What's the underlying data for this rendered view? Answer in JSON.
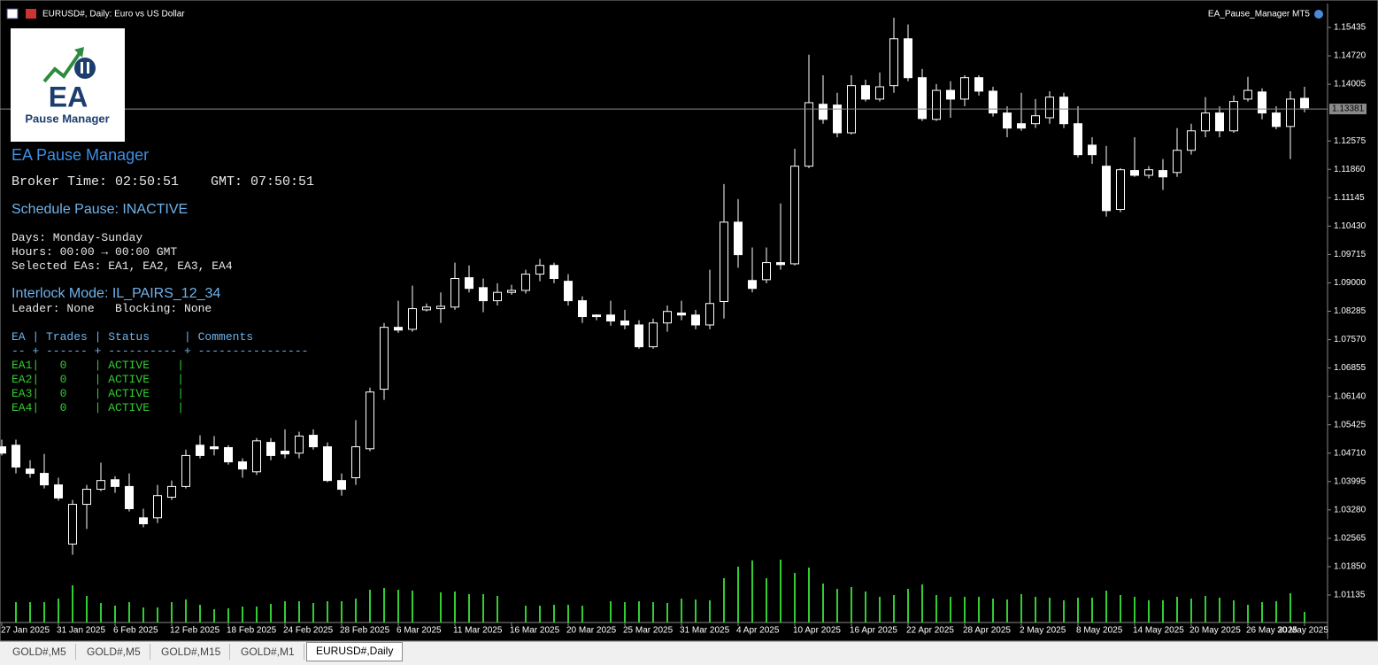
{
  "window": {
    "title": "EURUSD#, Daily: Euro vs US Dollar",
    "ea_label": "EA_Pause_Manager MT5"
  },
  "logo": {
    "title": "EA",
    "subtitle": "Pause Manager"
  },
  "panel": {
    "title": "EA Pause Manager",
    "time_line": "Broker Time: 02:50:51    GMT: 07:50:51",
    "schedule": "Schedule Pause: INACTIVE",
    "days": "Days: Monday-Sunday",
    "hours": "Hours: 00:00 → 00:00 GMT",
    "selected": "Selected EAs: EA1, EA2, EA3, EA4",
    "interlock": "Interlock Mode: IL_PAIRS_12_34",
    "leader": "Leader: None   Blocking: None",
    "table_header": "EA | Trades | Status     | Comments",
    "table_rule": "-- + ------ + ---------- + ----------------",
    "table_rows": [
      "EA1|   0    | ACTIVE    |",
      "EA2|   0    | ACTIVE    |",
      "EA3|   0    | ACTIVE    |",
      "EA4|   0    | ACTIVE    |"
    ]
  },
  "tabs": [
    "GOLD#,M5",
    "GOLD#,M5",
    "GOLD#,M15",
    "GOLD#,M1",
    "EURUSD#,Daily"
  ],
  "active_tab": 4,
  "chart_data": {
    "type": "candlestick",
    "bull_fill": "#000000",
    "bear_fill": "#ffffff",
    "candle_stroke": "#ffffff",
    "volume_color": "#32cd32",
    "categories": [
      "27 Jan 2025",
      null,
      null,
      null,
      "31 Jan 2025",
      null,
      null,
      null,
      "6 Feb 2025",
      null,
      null,
      null,
      "12 Feb 2025",
      null,
      null,
      null,
      "18 Feb 2025",
      null,
      null,
      null,
      "24 Feb 2025",
      null,
      null,
      null,
      "28 Feb 2025",
      null,
      null,
      null,
      "6 Mar 2025",
      null,
      null,
      null,
      "11 Mar 2025",
      null,
      null,
      null,
      "16 Mar 2025",
      null,
      null,
      null,
      "20 Mar 2025",
      null,
      null,
      null,
      "25 Mar 2025",
      null,
      null,
      null,
      "31 Mar 2025",
      null,
      null,
      null,
      "4 Apr 2025",
      null,
      null,
      null,
      "10 Apr 2025",
      null,
      null,
      null,
      "16 Apr 2025",
      null,
      null,
      null,
      "22 Apr 2025",
      null,
      null,
      null,
      "28 Apr 2025",
      null,
      null,
      null,
      "2 May 2025",
      null,
      null,
      null,
      "8 May 2025",
      null,
      null,
      null,
      "14 May 2025",
      null,
      null,
      null,
      "20 May 2025",
      null,
      null,
      null,
      "26 May 2025",
      null,
      null,
      null,
      "30 May 2025"
    ],
    "open": [
      1.0487,
      1.0491,
      1.0431,
      1.042,
      1.0391,
      1.0242,
      1.0342,
      1.038,
      1.0404,
      1.0387,
      1.0308,
      1.0308,
      1.036,
      1.0387,
      1.0491,
      1.0487,
      1.0485,
      1.0449,
      1.0424,
      1.0498,
      1.0476,
      1.0471,
      1.0516,
      1.0487,
      1.0402,
      1.0409,
      1.0482,
      1.0632,
      1.0788,
      1.0783,
      1.0832,
      1.0835,
      1.0839,
      1.0913,
      1.0888,
      1.0855,
      1.0876,
      1.0881,
      1.0922,
      1.0944,
      1.0904,
      1.0855,
      1.0819,
      1.0819,
      1.0804,
      1.0794,
      1.0739,
      1.0799,
      1.0824,
      1.0819,
      1.0794,
      1.0853,
      1.1053,
      1.0906,
      1.0908,
      1.0951,
      1.0948,
      1.1194,
      1.135,
      1.1348,
      1.1278,
      1.1397,
      1.1363,
      1.1397,
      1.1515,
      1.1417,
      1.1312,
      1.1385,
      1.1363,
      1.1417,
      1.1383,
      1.1328,
      1.1301,
      1.1301,
      1.1316,
      1.1368,
      1.1301,
      1.1247,
      1.1194,
      1.1085,
      1.1183,
      1.1171,
      1.1183,
      1.1178,
      1.1234,
      1.1283,
      1.1328,
      1.1283,
      1.1363,
      1.1381,
      1.1328,
      1.1294,
      1.1365
    ],
    "high": [
      1.0505,
      1.0505,
      1.0453,
      1.0469,
      1.0409,
      1.0353,
      1.0391,
      1.0447,
      1.0413,
      1.042,
      1.0331,
      1.0391,
      1.0402,
      1.048,
      1.0516,
      1.0514,
      1.0491,
      1.0458,
      1.0509,
      1.0509,
      1.0531,
      1.0525,
      1.0531,
      1.0498,
      1.042,
      1.0554,
      1.0636,
      1.0799,
      1.0855,
      1.0893,
      1.0848,
      1.0876,
      1.0951,
      1.0944,
      1.0911,
      1.0899,
      1.0895,
      1.0933,
      1.096,
      1.0951,
      1.0922,
      1.0866,
      1.0821,
      1.0855,
      1.0832,
      1.0806,
      1.081,
      1.0843,
      1.0855,
      1.0832,
      1.0933,
      1.1149,
      1.1111,
      1.0989,
      1.0989,
      1.11,
      1.1238,
      1.1475,
      1.1423,
      1.1379,
      1.1423,
      1.1412,
      1.143,
      1.1568,
      1.1551,
      1.1439,
      1.1401,
      1.1408,
      1.1423,
      1.1423,
      1.1394,
      1.1345,
      1.1379,
      1.1363,
      1.1383,
      1.1379,
      1.1345,
      1.1267,
      1.1245,
      1.1189,
      1.1267,
      1.1194,
      1.1212,
      1.129,
      1.1301,
      1.1368,
      1.1345,
      1.1372,
      1.1419,
      1.139,
      1.1345,
      1.1383,
      1.1394
    ],
    "low": [
      1.0465,
      1.042,
      1.0409,
      1.0382,
      1.0351,
      1.0215,
      1.028,
      1.0375,
      1.0371,
      1.0324,
      1.0284,
      1.0295,
      1.0353,
      1.0382,
      1.0458,
      1.0465,
      1.0442,
      1.0409,
      1.0416,
      1.0453,
      1.0458,
      1.0458,
      1.048,
      1.0398,
      1.0364,
      1.0391,
      1.0476,
      1.0605,
      1.0774,
      1.0777,
      1.0828,
      1.0799,
      1.0832,
      1.0876,
      1.0826,
      1.0843,
      1.087,
      1.0873,
      1.0904,
      1.0899,
      1.0843,
      1.0799,
      1.0806,
      1.0792,
      1.0783,
      1.0734,
      1.0734,
      1.0777,
      1.0806,
      1.0783,
      1.0783,
      1.081,
      1.0938,
      1.0876,
      1.0899,
      1.0933,
      1.0944,
      1.1189,
      1.1301,
      1.1267,
      1.1274,
      1.1357,
      1.1357,
      1.1379,
      1.1408,
      1.1308,
      1.1308,
      1.1316,
      1.1345,
      1.1372,
      1.1319,
      1.1267,
      1.1283,
      1.129,
      1.1301,
      1.129,
      1.1216,
      1.12,
      1.1067,
      1.1078,
      1.1167,
      1.1163,
      1.1134,
      1.1167,
      1.1223,
      1.1267,
      1.1267,
      1.1278,
      1.1357,
      1.1312,
      1.1287,
      1.1212,
      1.133
    ],
    "close": [
      1.0471,
      1.0436,
      1.042,
      1.0391,
      1.0358,
      1.0342,
      1.038,
      1.0402,
      1.0387,
      1.0331,
      1.0293,
      1.0364,
      1.0387,
      1.0465,
      1.0465,
      1.0482,
      1.0449,
      1.0431,
      1.0502,
      1.0465,
      1.0469,
      1.0514,
      1.0487,
      1.0402,
      1.038,
      1.0487,
      1.0625,
      1.0788,
      1.0781,
      1.0835,
      1.0839,
      1.0841,
      1.0911,
      1.0886,
      1.0855,
      1.0876,
      1.0881,
      1.0922,
      1.0944,
      1.0911,
      1.0855,
      1.0815,
      1.0815,
      1.0804,
      1.0794,
      1.0739,
      1.0799,
      1.0828,
      1.0819,
      1.0794,
      1.0848,
      1.1053,
      1.0971,
      1.0886,
      1.0951,
      1.0946,
      1.1194,
      1.1354,
      1.1312,
      1.1278,
      1.1397,
      1.1363,
      1.1394,
      1.1515,
      1.1417,
      1.1314,
      1.1385,
      1.1363,
      1.1417,
      1.1383,
      1.1328,
      1.129,
      1.129,
      1.1321,
      1.1368,
      1.1301,
      1.1223,
      1.1223,
      1.1082,
      1.1185,
      1.1171,
      1.1185,
      1.1167,
      1.1234,
      1.1283,
      1.1328,
      1.1283,
      1.1357,
      1.1385,
      1.1328,
      1.1294,
      1.1363,
      1.1341
    ],
    "volume": [
      null,
      23,
      23,
      23,
      27,
      42,
      30,
      22,
      19,
      23,
      17,
      17,
      23,
      26,
      20,
      15,
      16,
      18,
      18,
      21,
      24,
      24,
      22,
      24,
      24,
      27,
      37,
      39,
      37,
      36,
      null,
      34,
      35,
      32,
      32,
      30,
      null,
      19,
      19,
      20,
      20,
      19,
      null,
      24,
      23,
      24,
      23,
      22,
      27,
      26,
      25,
      50,
      63,
      70,
      50,
      71,
      56,
      62,
      44,
      38,
      40,
      35,
      29,
      31,
      38,
      43,
      31,
      29,
      29,
      29,
      27,
      26,
      32,
      29,
      28,
      25,
      28,
      28,
      36,
      31,
      29,
      25,
      25,
      29,
      27,
      30,
      28,
      25,
      20,
      23,
      24,
      33,
      12
    ],
    "volume_ylim": [
      0,
      100
    ],
    "ylim": [
      1.00443,
      1.15569
    ],
    "yticks": [
      1.15435,
      {
        "value": 1.1472,
        "label": "1.14720"
      },
      1.14005,
      1.12575,
      {
        "value": 1.1186,
        "label": "1.11860"
      },
      1.11145,
      {
        "value": 1.1043,
        "label": "1.10430"
      },
      1.09715,
      {
        "value": 1.09,
        "label": "1.09000"
      },
      1.08285,
      {
        "value": 1.0757,
        "label": "1.07570"
      },
      1.06855,
      {
        "value": 1.0614,
        "label": "1.06140"
      },
      1.05425,
      {
        "value": 1.0471,
        "label": "1.04710"
      },
      1.03995,
      {
        "value": 1.0328,
        "label": "1.03280"
      },
      1.02565,
      {
        "value": 1.0185,
        "label": "1.01850"
      },
      1.01135
    ],
    "price_line": 1.13381,
    "grid": false
  }
}
